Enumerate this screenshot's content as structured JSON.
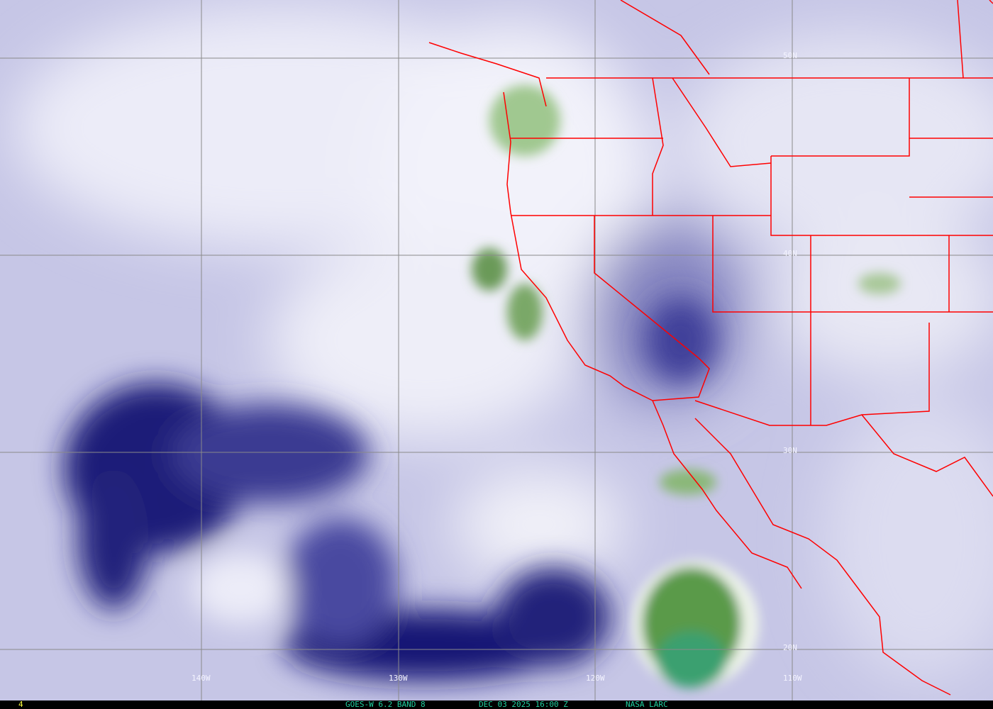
{
  "map": {
    "product": "water-vapor satellite imagery",
    "colors": {
      "dry": "#141470",
      "moist": "#f4f4fc",
      "cold_tops": "#4a8a3a",
      "borders": "#ff0000",
      "grid": "#808080"
    },
    "lon_labels": [
      "140W",
      "130W",
      "120W",
      "110W"
    ],
    "lat_labels": [
      "50N",
      "40N",
      "30N",
      "20N"
    ]
  },
  "footer": {
    "frame": "4",
    "satellite": "GOES-W 6.2 BAND 8",
    "datetime": "DEC 03 2025 16:00 Z",
    "source": "NASA LARC"
  }
}
